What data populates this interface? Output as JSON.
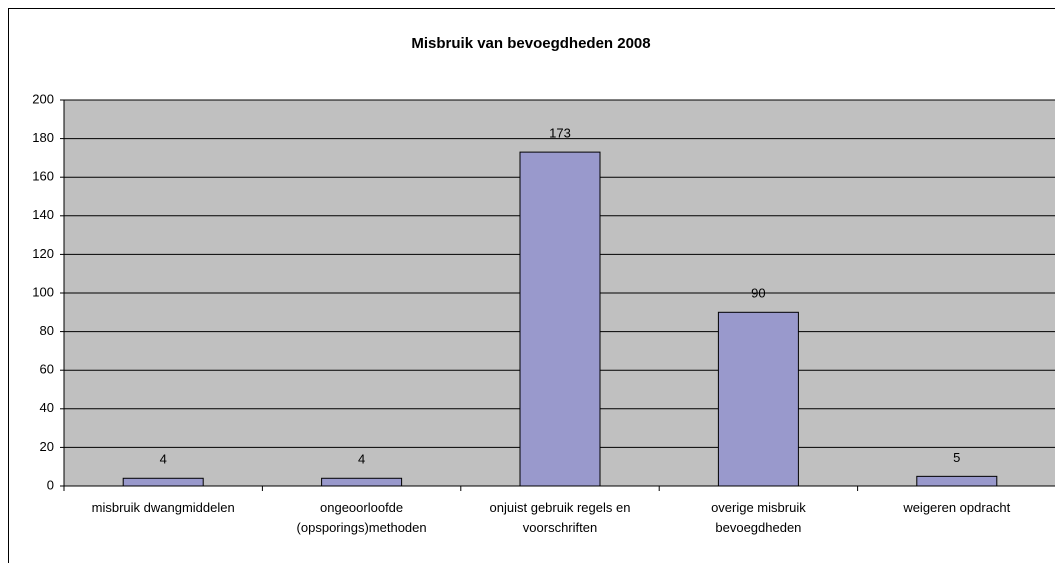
{
  "chart_data": {
    "type": "bar",
    "title": "Misbruik van bevoegdheden 2008",
    "categories": [
      "misbruik dwangmiddelen",
      "ongeoorloofde\n(opsporings)methoden",
      "onjuist gebruik regels en\nvoorschriften",
      "overige misbruik\nbevoegdheden",
      "weigeren opdracht"
    ],
    "values": [
      4,
      4,
      173,
      90,
      5
    ],
    "color": "#9999cc",
    "ylim": [
      0,
      200
    ],
    "yticks": [
      0,
      20,
      40,
      60,
      80,
      100,
      120,
      140,
      160,
      180,
      200
    ],
    "grid": true
  }
}
